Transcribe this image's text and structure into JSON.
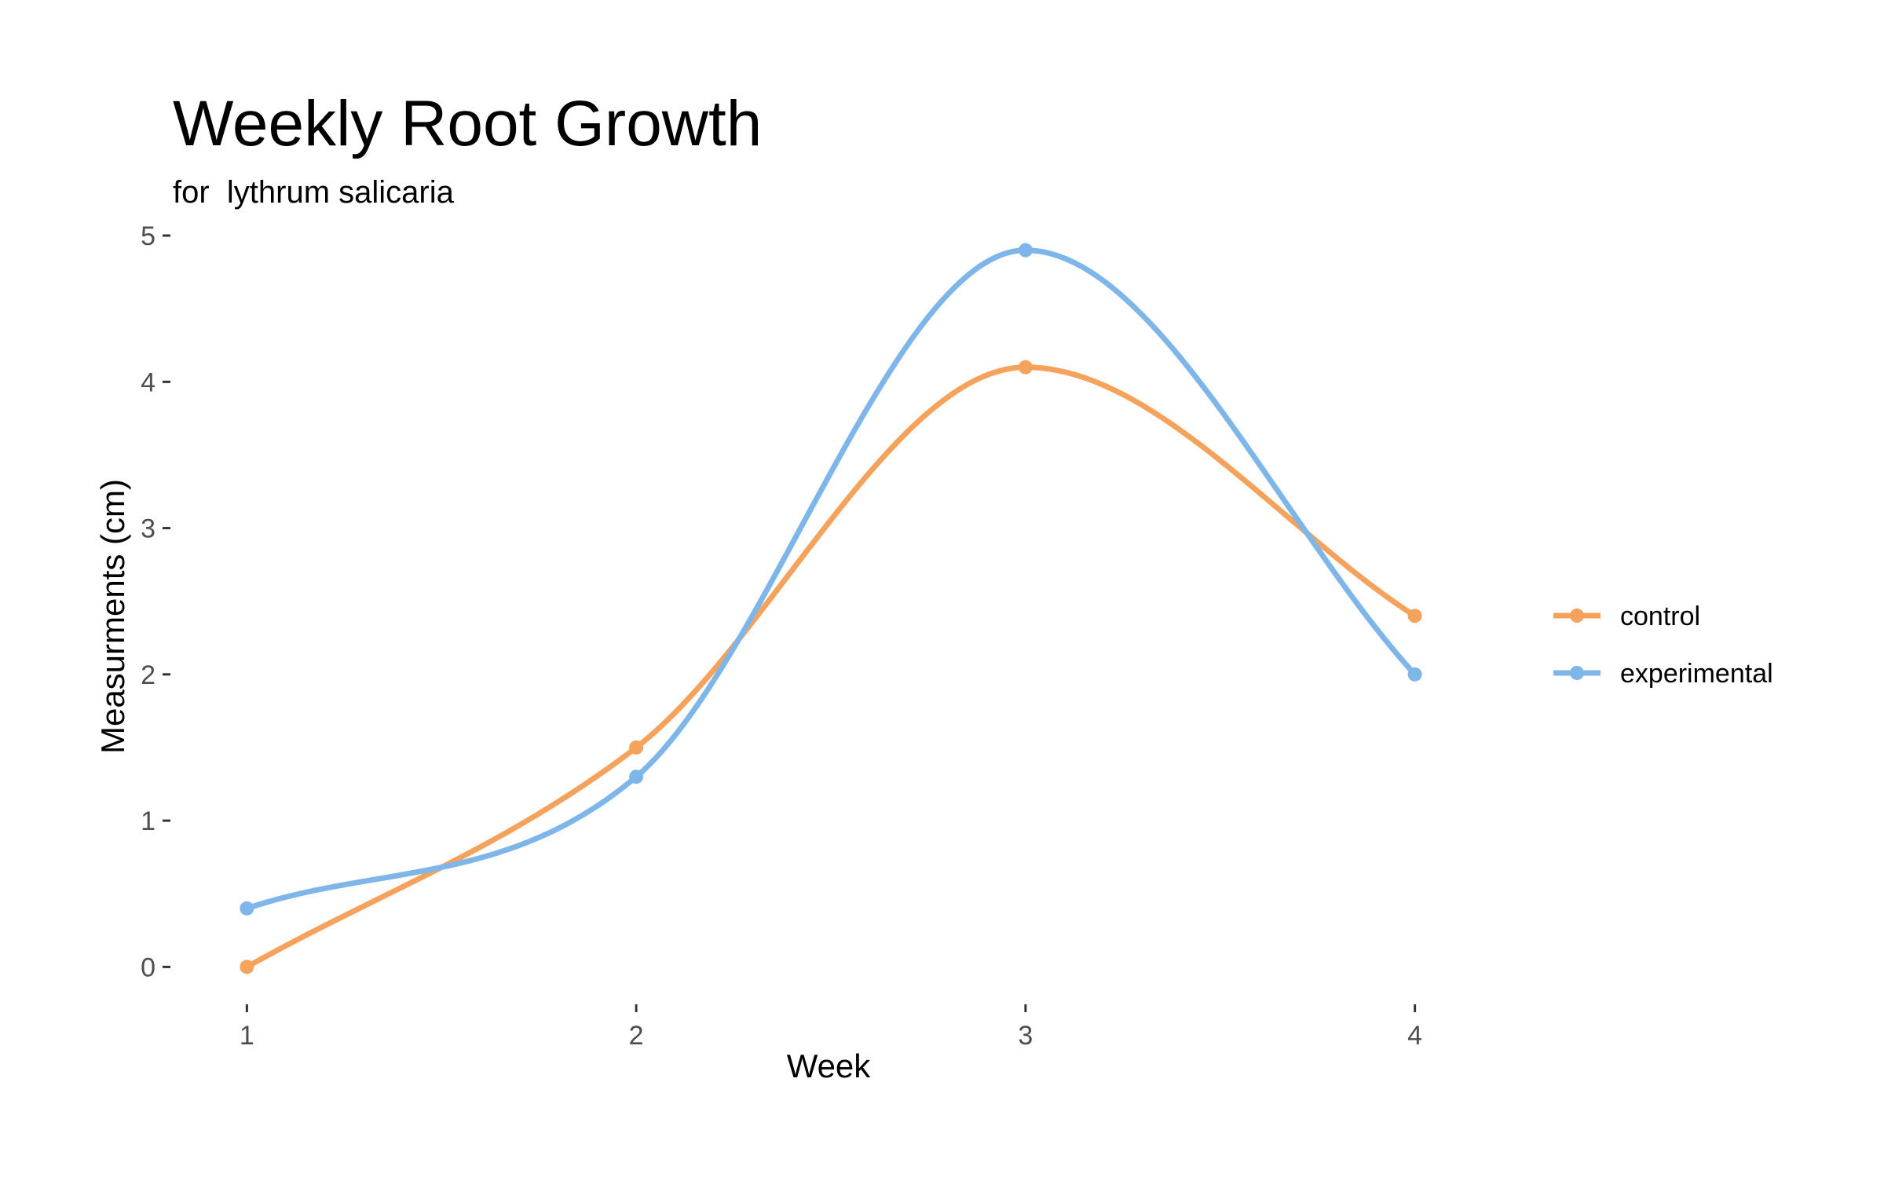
{
  "chart_data": {
    "type": "line",
    "title": "Weekly Root Growth",
    "subtitle": "for  lythrum salicaria",
    "xlabel": "Week",
    "ylabel": "Measurments (cm)",
    "x": [
      1,
      2,
      3,
      4
    ],
    "x_tick_labels": [
      "1",
      "2",
      "3",
      "4"
    ],
    "y_ticks": [
      0,
      1,
      2,
      3,
      4,
      5
    ],
    "y_tick_labels": [
      "0",
      "1",
      "2",
      "3",
      "4",
      "5"
    ],
    "xlim": [
      0.85,
      4.15
    ],
    "ylim": [
      -0.1,
      5.0
    ],
    "grid": false,
    "smoothed": true,
    "legend_position": "right",
    "series": [
      {
        "name": "control",
        "values": [
          0.0,
          1.5,
          4.1,
          2.4
        ],
        "color": "#f5a25d"
      },
      {
        "name": "experimental",
        "values": [
          0.4,
          1.3,
          4.9,
          2.0
        ],
        "color": "#7eb6ea"
      }
    ]
  }
}
